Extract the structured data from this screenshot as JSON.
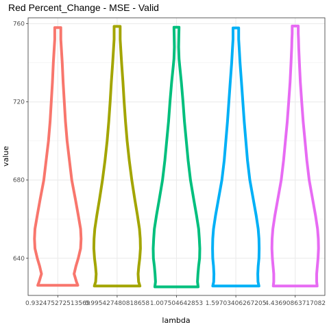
{
  "chart_data": {
    "type": "violin",
    "title": "Red Percent_Change - MSE - Valid",
    "xlabel": "lambda",
    "ylabel": "value",
    "ylim": [
      621,
      763
    ],
    "yticks": [
      640,
      680,
      720,
      760
    ],
    "grid": true,
    "series": [
      {
        "category": "0.932475272513569",
        "color": "#F8766D",
        "min": 626.2,
        "max": 758.0,
        "profile": [
          [
            626.2,
            0.86
          ],
          [
            628,
            0.8
          ],
          [
            632,
            0.7
          ],
          [
            636,
            0.78
          ],
          [
            640,
            0.88
          ],
          [
            645,
            0.98
          ],
          [
            650,
            1.0
          ],
          [
            655,
            0.98
          ],
          [
            662,
            0.88
          ],
          [
            670,
            0.76
          ],
          [
            680,
            0.6
          ],
          [
            690,
            0.5
          ],
          [
            700,
            0.4
          ],
          [
            710,
            0.33
          ],
          [
            720,
            0.28
          ],
          [
            730,
            0.23
          ],
          [
            740,
            0.19
          ],
          [
            748,
            0.15
          ],
          [
            752,
            0.13
          ],
          [
            755,
            0.13
          ],
          [
            758,
            0.13
          ]
        ]
      },
      {
        "category": "0.995427480818658",
        "color": "#A3A500",
        "min": 625.8,
        "max": 758.6,
        "profile": [
          [
            625.8,
            0.98
          ],
          [
            628,
            0.92
          ],
          [
            632,
            0.9
          ],
          [
            636,
            0.93
          ],
          [
            640,
            0.97
          ],
          [
            645,
            1.0
          ],
          [
            650,
            0.99
          ],
          [
            655,
            0.96
          ],
          [
            662,
            0.87
          ],
          [
            670,
            0.76
          ],
          [
            680,
            0.63
          ],
          [
            690,
            0.52
          ],
          [
            700,
            0.43
          ],
          [
            710,
            0.36
          ],
          [
            720,
            0.3
          ],
          [
            730,
            0.25
          ],
          [
            740,
            0.19
          ],
          [
            748,
            0.15
          ],
          [
            752,
            0.13
          ],
          [
            755,
            0.13
          ],
          [
            758.6,
            0.13
          ]
        ]
      },
      {
        "category": "1.007504642853",
        "color": "#00BF7D",
        "min": 625.4,
        "max": 758.2,
        "profile": [
          [
            625.4,
            0.93
          ],
          [
            628,
            0.9
          ],
          [
            632,
            0.92
          ],
          [
            636,
            0.95
          ],
          [
            640,
            0.99
          ],
          [
            645,
            1.0
          ],
          [
            650,
            0.98
          ],
          [
            655,
            0.95
          ],
          [
            662,
            0.86
          ],
          [
            670,
            0.74
          ],
          [
            680,
            0.6
          ],
          [
            690,
            0.5
          ],
          [
            700,
            0.42
          ],
          [
            710,
            0.34
          ],
          [
            720,
            0.28
          ],
          [
            730,
            0.21
          ],
          [
            738,
            0.14
          ],
          [
            742,
            0.11
          ],
          [
            748,
            0.09
          ],
          [
            754,
            0.1
          ],
          [
            758.2,
            0.11
          ]
        ]
      },
      {
        "category": "1.59703406267205",
        "color": "#00B0F6",
        "min": 625.8,
        "max": 757.8,
        "profile": [
          [
            625.8,
            0.99
          ],
          [
            628,
            0.95
          ],
          [
            632,
            0.94
          ],
          [
            636,
            0.96
          ],
          [
            640,
            0.99
          ],
          [
            645,
            1.0
          ],
          [
            650,
            0.99
          ],
          [
            655,
            0.96
          ],
          [
            662,
            0.87
          ],
          [
            670,
            0.75
          ],
          [
            680,
            0.6
          ],
          [
            690,
            0.5
          ],
          [
            700,
            0.43
          ],
          [
            710,
            0.36
          ],
          [
            720,
            0.3
          ],
          [
            730,
            0.24
          ],
          [
            740,
            0.18
          ],
          [
            748,
            0.14
          ],
          [
            752,
            0.12
          ],
          [
            755,
            0.12
          ],
          [
            757.8,
            0.12
          ]
        ]
      },
      {
        "category": "4.43690863717082",
        "color": "#E76BF3",
        "min": 625.8,
        "max": 758.8,
        "profile": [
          [
            625.8,
            0.94
          ],
          [
            628,
            0.92
          ],
          [
            632,
            0.92
          ],
          [
            636,
            0.95
          ],
          [
            640,
            0.98
          ],
          [
            645,
            1.0
          ],
          [
            650,
            0.99
          ],
          [
            655,
            0.96
          ],
          [
            662,
            0.87
          ],
          [
            670,
            0.75
          ],
          [
            680,
            0.6
          ],
          [
            690,
            0.5
          ],
          [
            700,
            0.42
          ],
          [
            710,
            0.34
          ],
          [
            720,
            0.28
          ],
          [
            730,
            0.22
          ],
          [
            740,
            0.18
          ],
          [
            748,
            0.15
          ],
          [
            752,
            0.14
          ],
          [
            755,
            0.13
          ],
          [
            758.8,
            0.13
          ]
        ]
      }
    ]
  }
}
